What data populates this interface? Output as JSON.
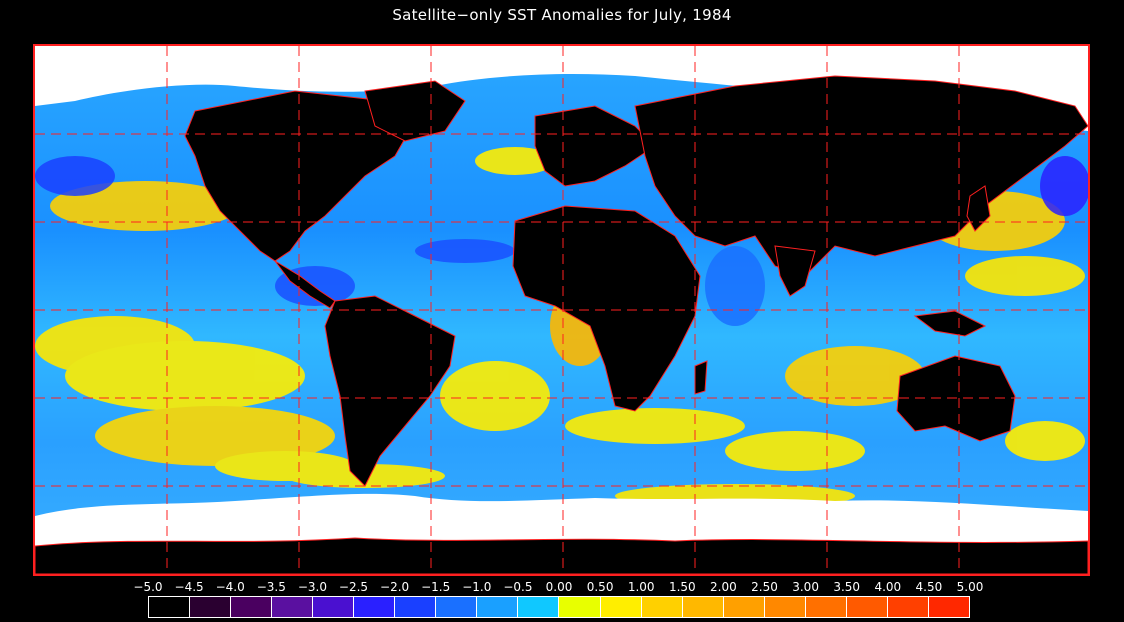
{
  "title": "Satellite−only SST Anomalies for July, 1984",
  "map": {
    "projection": "equirectangular",
    "grid_lines": "dashed-red",
    "land_color": "#000000",
    "ice_color": "#ffffff",
    "coastline_color": "#ff2020"
  },
  "colorbar": {
    "labels": [
      "−5.0",
      "−4.5",
      "−4.0",
      "−3.5",
      "−3.0",
      "−2.5",
      "−2.0",
      "−1.5",
      "−1.0",
      "−0.5",
      "0.00",
      "0.50",
      "1.00",
      "1.50",
      "2.00",
      "2.50",
      "3.00",
      "3.50",
      "4.00",
      "4.50",
      "5.00"
    ],
    "colors": [
      "#000000",
      "#2a0030",
      "#4a0060",
      "#5a10a0",
      "#4a10d0",
      "#2a20ff",
      "#1a40ff",
      "#1a70ff",
      "#1aa0ff",
      "#10c8ff",
      "#e8ff00",
      "#ffee00",
      "#ffd000",
      "#ffb800",
      "#ffa000",
      "#ff8800",
      "#ff7000",
      "#ff5a00",
      "#ff4000",
      "#ff2800"
    ]
  }
}
